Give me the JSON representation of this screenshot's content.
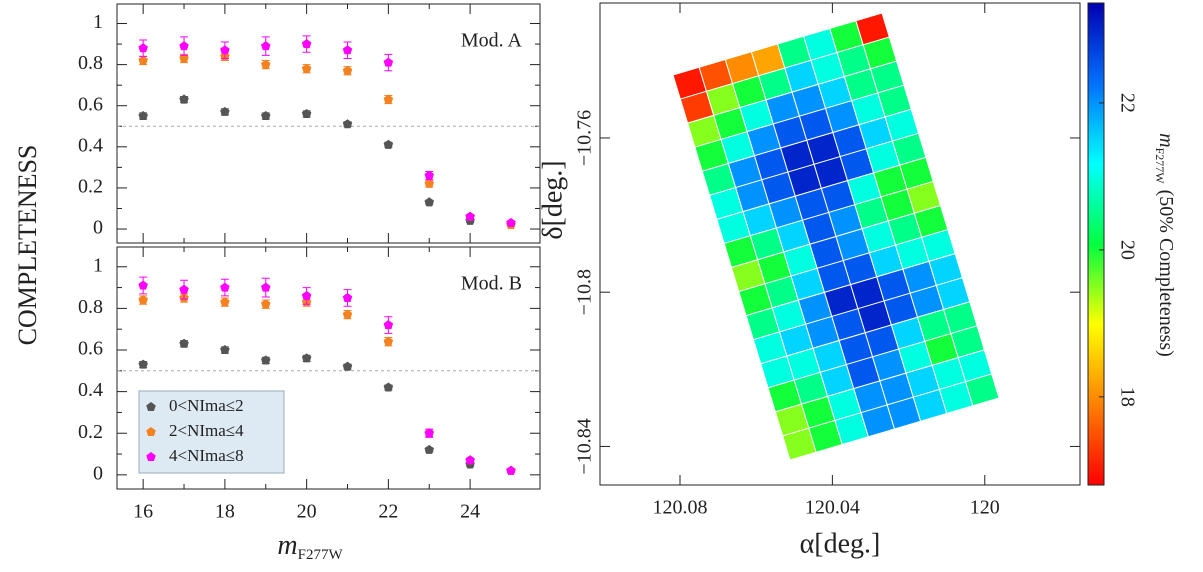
{
  "chart_data": [
    {
      "type": "scatter",
      "annotation": "Mod. A",
      "ylabel": "COMPLETENESS",
      "x": [
        16,
        17,
        18,
        19,
        20,
        21,
        22,
        23,
        24,
        25
      ],
      "series": [
        {
          "color": "#555555",
          "values": [
            0.55,
            0.63,
            0.57,
            0.55,
            0.56,
            0.51,
            0.41,
            0.13,
            0.04,
            0.02
          ],
          "errors": [
            0.015,
            0.015,
            0.015,
            0.015,
            0.015,
            0.012,
            0.012,
            0.01,
            0.008,
            0.005
          ]
        },
        {
          "color": "#f58220",
          "values": [
            0.82,
            0.83,
            0.84,
            0.8,
            0.78,
            0.77,
            0.63,
            0.22,
            0.06,
            0.02
          ],
          "errors": [
            0.02,
            0.02,
            0.02,
            0.02,
            0.02,
            0.02,
            0.02,
            0.015,
            0.01,
            0.005
          ]
        },
        {
          "color": "#ff00ff",
          "values": [
            0.88,
            0.89,
            0.87,
            0.89,
            0.9,
            0.87,
            0.81,
            0.26,
            0.06,
            0.03
          ],
          "errors": [
            0.04,
            0.045,
            0.04,
            0.045,
            0.04,
            0.04,
            0.04,
            0.02,
            0.01,
            0.008
          ]
        }
      ],
      "xlim": [
        15.36,
        25.71
      ],
      "xticks": [
        16,
        18,
        20,
        22,
        24
      ],
      "ylim": [
        -0.068,
        1.095
      ],
      "yticks": [
        0,
        0.2,
        0.4,
        0.6,
        0.8,
        1
      ],
      "hline": 0.5
    },
    {
      "type": "scatter",
      "annotation": "Mod. B",
      "xlabel": "m",
      "xlabel_sub": "F277W",
      "legend": "lower left",
      "x": [
        16,
        17,
        18,
        19,
        20,
        21,
        22,
        23,
        24,
        25
      ],
      "series": [
        {
          "name": "0<NIma≤2",
          "color": "#555555",
          "values": [
            0.53,
            0.63,
            0.6,
            0.55,
            0.56,
            0.52,
            0.42,
            0.12,
            0.05,
            0.02
          ],
          "errors": [
            0.015,
            0.015,
            0.015,
            0.015,
            0.015,
            0.012,
            0.012,
            0.01,
            0.008,
            0.005
          ]
        },
        {
          "name": "2<NIma≤4",
          "color": "#f58220",
          "values": [
            0.84,
            0.85,
            0.83,
            0.82,
            0.83,
            0.77,
            0.64,
            0.2,
            0.07,
            0.02
          ],
          "errors": [
            0.02,
            0.02,
            0.02,
            0.02,
            0.02,
            0.02,
            0.02,
            0.015,
            0.01,
            0.005
          ]
        },
        {
          "name": "4<NIma≤8",
          "color": "#ff00ff",
          "values": [
            0.91,
            0.89,
            0.9,
            0.9,
            0.86,
            0.85,
            0.72,
            0.2,
            0.07,
            0.02
          ],
          "errors": [
            0.04,
            0.045,
            0.04,
            0.045,
            0.04,
            0.04,
            0.04,
            0.02,
            0.01,
            0.008
          ]
        }
      ],
      "xlim": [
        15.36,
        25.71
      ],
      "xticks": [
        16,
        18,
        20,
        22,
        24
      ],
      "ylim": [
        -0.068,
        1.095
      ],
      "yticks": [
        0,
        0.2,
        0.4,
        0.6,
        0.8,
        1
      ],
      "hline": 0.5
    },
    {
      "type": "heatmap",
      "xlabel": "α[deg.]",
      "ylabel": "δ[deg.]",
      "xlim": [
        120.101,
        119.975
      ],
      "xticks": [
        120.08,
        120.04,
        120
      ],
      "ylim": [
        -10.85,
        -10.725
      ],
      "yticks": [
        {
          "value": -10.76,
          "label": "−10.76"
        },
        {
          "value": -10.8,
          "label": "−10.8"
        },
        {
          "value": -10.84,
          "label": "−10.84"
        }
      ],
      "clim": [
        16.8,
        23.36
      ],
      "cticks": [
        18,
        20,
        22
      ],
      "colormap": [
        "#ff0000",
        "#ff8000",
        "#ffff00",
        "#00ff40",
        "#00ffff",
        "#0070ff",
        "#0000b0"
      ],
      "colorbar_label": "m",
      "colorbar_label_sub": "F277W",
      "colorbar_label_rest": "(50% Completeness)",
      "values": [
        [
          17.0,
          17.5,
          18.0,
          18.2,
          20.5,
          21.0,
          20.0,
          17.0
        ],
        [
          17.3,
          19.5,
          20.0,
          20.5,
          21.5,
          21.0,
          20.5,
          20.0
        ],
        [
          19.5,
          20.0,
          21.0,
          22.0,
          22.0,
          21.5,
          20.5,
          20.5
        ],
        [
          20.0,
          21.0,
          22.0,
          22.5,
          22.5,
          22.0,
          21.0,
          20.5
        ],
        [
          20.5,
          22.0,
          22.5,
          23.0,
          23.0,
          22.5,
          21.5,
          21.0
        ],
        [
          21.0,
          22.0,
          22.5,
          23.0,
          23.0,
          22.5,
          21.0,
          20.5
        ],
        [
          21.0,
          21.5,
          22.0,
          22.5,
          22.5,
          21.0,
          20.0,
          20.0
        ],
        [
          20.0,
          20.5,
          21.5,
          22.5,
          22.0,
          20.5,
          20.0,
          19.5
        ],
        [
          19.5,
          20.0,
          21.0,
          22.5,
          22.0,
          21.0,
          20.5,
          20.0
        ],
        [
          20.0,
          20.5,
          21.5,
          22.5,
          22.5,
          21.5,
          21.0,
          21.0
        ],
        [
          20.5,
          21.0,
          22.0,
          23.0,
          23.0,
          22.5,
          22.0,
          21.5
        ],
        [
          21.0,
          21.5,
          22.0,
          22.5,
          23.0,
          22.5,
          22.0,
          21.5
        ],
        [
          21.0,
          21.0,
          21.5,
          22.5,
          22.5,
          21.5,
          20.5,
          20.5
        ],
        [
          20.0,
          20.5,
          21.5,
          22.5,
          22.0,
          21.0,
          20.0,
          20.5
        ],
        [
          19.5,
          20.0,
          21.0,
          22.0,
          22.0,
          21.5,
          21.0,
          21.0
        ],
        [
          19.5,
          20.0,
          21.0,
          22.0,
          22.0,
          21.5,
          21.0,
          20.5
        ]
      ]
    }
  ]
}
